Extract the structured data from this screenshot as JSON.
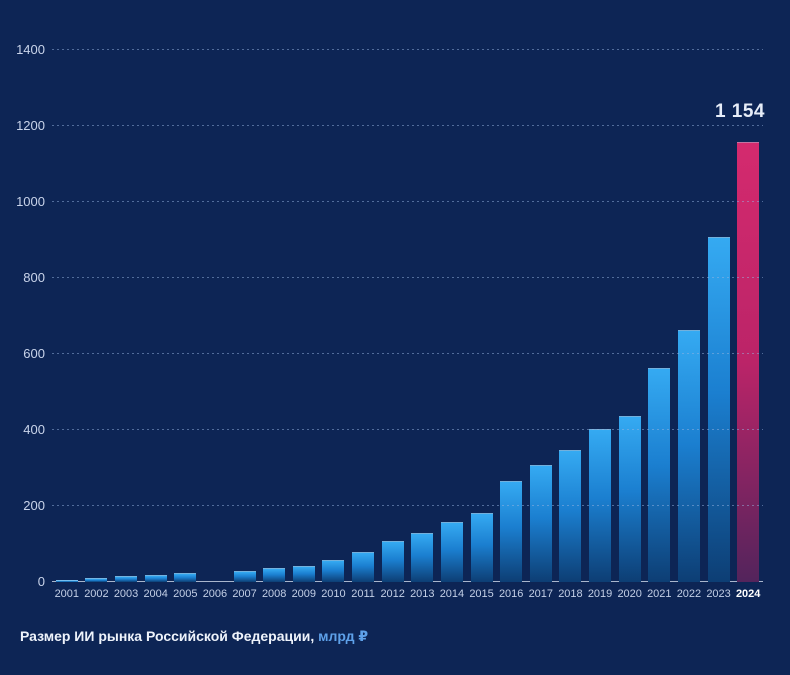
{
  "meta": {
    "background_color": "#0d2555"
  },
  "chart_data": {
    "type": "bar",
    "title": "Размер ИИ рынка Российской Федерации, млрд ₽",
    "categories": [
      "2001",
      "2002",
      "2003",
      "2004",
      "2005",
      "2006",
      "2007",
      "2008",
      "2009",
      "2010",
      "2011",
      "2012",
      "2013",
      "2014",
      "2015",
      "2016",
      "2017",
      "2018",
      "2019",
      "2020",
      "2021",
      "2022",
      "2023",
      "2024"
    ],
    "values": [
      3,
      8,
      12,
      15,
      21,
      0,
      27,
      35,
      40,
      55,
      77,
      104,
      125,
      156,
      180,
      263,
      305,
      345,
      400,
      433,
      560,
      660,
      905,
      1154
    ],
    "ylim": [
      0,
      1400
    ],
    "yticks": [
      "0",
      "200",
      "400",
      "600",
      "800",
      "1000",
      "1200",
      "1400"
    ],
    "ytick_values": [
      0,
      200,
      400,
      600,
      800,
      1000,
      1200,
      1400
    ],
    "grid": "horizontal-dotted",
    "legend": "none",
    "xlabel": "",
    "ylabel": "",
    "highlight": {
      "category": "2024",
      "value": 1154,
      "value_label": "1 154"
    },
    "colors": {
      "bar_gradient_top": "#35aaf2",
      "bar_gradient_bottom": "#0d3e74",
      "highlight_gradient_top": "#d42a6e",
      "highlight_gradient_bottom": "#53245c",
      "axis_label": "#c9d4ea",
      "value_label": "#e6edf8",
      "background": "#0d2555"
    }
  },
  "caption": {
    "text": "Размер ИИ рынка Российской Федерации,",
    "unit": "млрд ₽"
  }
}
